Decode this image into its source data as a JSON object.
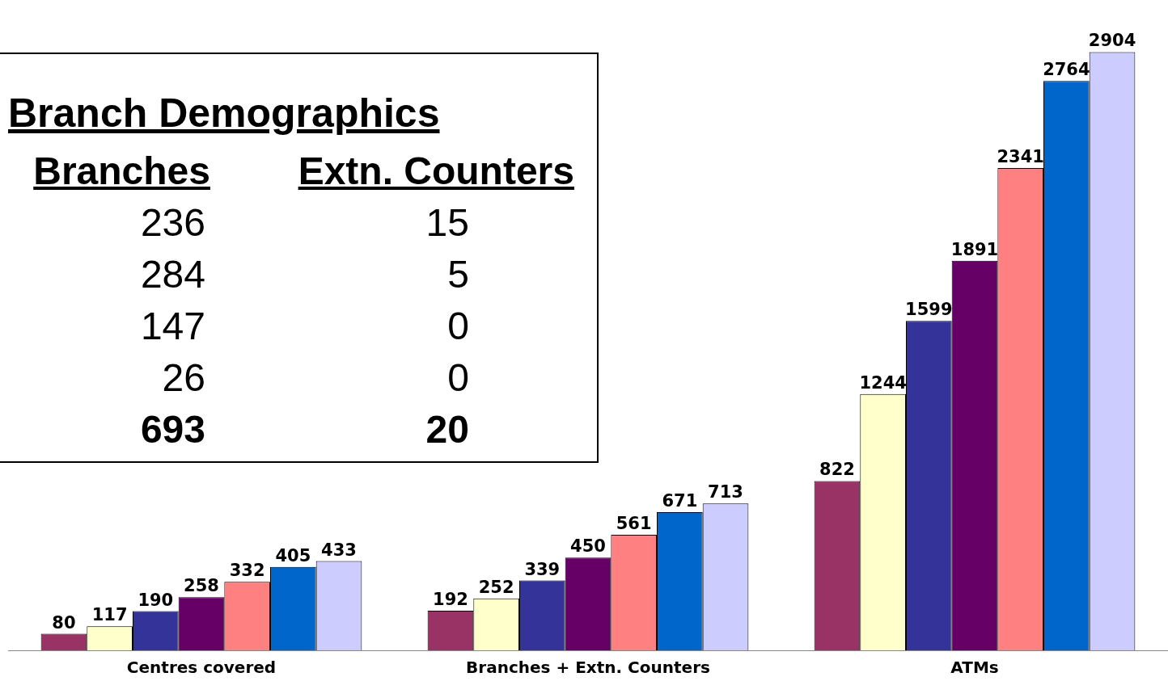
{
  "chart_data": [
    {
      "type": "bar",
      "categories": [
        "Centres covered",
        "Branches + Extn. Counters",
        "ATMs"
      ],
      "series": [
        {
          "color": "#993366",
          "values": [
            80,
            192,
            822
          ]
        },
        {
          "color": "#ffffcc",
          "values": [
            117,
            252,
            1244
          ]
        },
        {
          "color": "#333399",
          "values": [
            190,
            339,
            1599
          ]
        },
        {
          "color": "#660066",
          "values": [
            258,
            450,
            1891
          ]
        },
        {
          "color": "#ff8080",
          "values": [
            332,
            561,
            2341
          ]
        },
        {
          "color": "#0066cc",
          "values": [
            405,
            671,
            2764
          ]
        },
        {
          "color": "#ccccff",
          "values": [
            433,
            713,
            2904
          ]
        }
      ],
      "data_labels": true,
      "tick_labels": "x",
      "grid": false,
      "legend": false
    },
    {
      "type": "other",
      "title": "Branch Demographics",
      "annotations": [
        "Branches",
        "Extn. Counters",
        "236",
        "15",
        "284",
        "5",
        "147",
        "0",
        "26",
        "0",
        "693",
        "20"
      ]
    }
  ]
}
